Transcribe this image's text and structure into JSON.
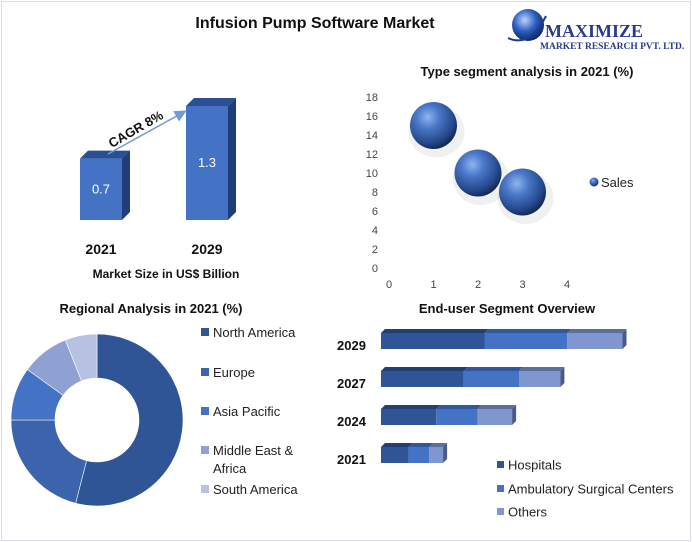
{
  "title": "Infusion Pump Software Market",
  "logo": {
    "line1": "MAXIMIZE",
    "line2": "MARKET RESEARCH PVT. LTD."
  },
  "colors": {
    "dark": "#2f5597",
    "mid": "#4472c4",
    "light": "#7f96cf",
    "pale": "#b7c2e3"
  },
  "chart_data": [
    {
      "type": "bar",
      "categories": [
        "2021",
        "2029"
      ],
      "values": [
        0.7,
        1.3
      ],
      "data_labels": [
        "0.7",
        "1.3"
      ],
      "xlabel": "Market Size in US$ Billion",
      "annotation": "CAGR 8%"
    },
    {
      "type": "scatter",
      "title": "Type segment analysis in 2021 (%)",
      "x": [
        1,
        2,
        3
      ],
      "series": [
        {
          "name": "Sales",
          "values": [
            15,
            10,
            8
          ]
        }
      ],
      "xlim": [
        0,
        4
      ],
      "ylim": [
        0,
        18
      ],
      "xticks": [
        "0",
        "1",
        "2",
        "3",
        "4"
      ],
      "yticks": [
        "0",
        "2",
        "4",
        "6",
        "8",
        "10",
        "12",
        "14",
        "16",
        "18"
      ],
      "legend": "right"
    },
    {
      "type": "pie",
      "title": "Regional Analysis in 2021 (%)",
      "donut": true,
      "categories": [
        "North America",
        "Europe",
        "Asia Pacific",
        "Middle East & Africa",
        "South America"
      ],
      "legend_lines": [
        [
          "North America"
        ],
        [
          "Europe"
        ],
        [
          "Asia Pacific"
        ],
        [
          "Middle East &",
          "Africa"
        ],
        [
          "South America"
        ]
      ],
      "values": [
        54,
        21,
        10,
        9,
        6
      ],
      "colors": [
        "#2f5597",
        "#3b64ad",
        "#4472c4",
        "#8ea1d2",
        "#b7c2e3"
      ],
      "legend": "right"
    },
    {
      "type": "bar",
      "orientation": "horizontal",
      "stacked": true,
      "title": "End-user Segment Overview",
      "categories": [
        "2029",
        "2027",
        "2024",
        "2021"
      ],
      "series": [
        {
          "name": "Hospitals",
          "values": [
            15,
            12,
            8,
            4
          ],
          "color": "#2f5597"
        },
        {
          "name": "Ambulatory Surgical Centers",
          "values": [
            12,
            8,
            6,
            3
          ],
          "color": "#4472c4"
        },
        {
          "name": "Others",
          "values": [
            8,
            6,
            5,
            2
          ],
          "color": "#7f96cf"
        }
      ],
      "legend": "bottom-right"
    }
  ]
}
